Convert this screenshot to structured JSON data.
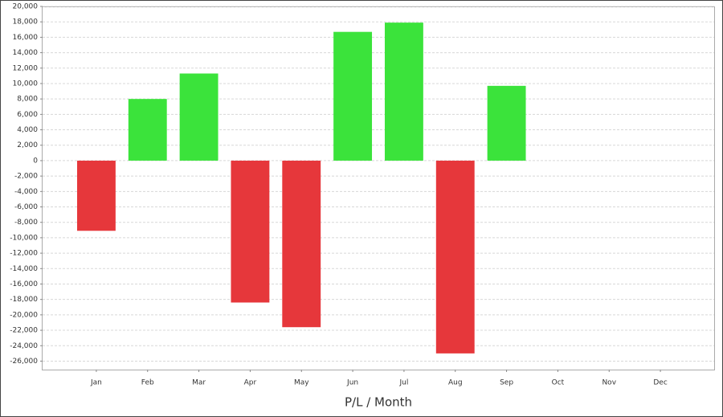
{
  "chart_data": {
    "type": "bar",
    "x_label": "P/L / Month",
    "categories": [
      "Jan",
      "Feb",
      "Mar",
      "Apr",
      "May",
      "Jun",
      "Jul",
      "Aug",
      "Sep",
      "Oct",
      "Nov",
      "Dec"
    ],
    "values": [
      -9100,
      8000,
      11300,
      -18400,
      -21600,
      16700,
      17900,
      -25000,
      9700,
      null,
      null,
      null
    ],
    "positive_color": "#3be33b",
    "negative_color": "#e6373b",
    "ylim": [
      -27100,
      20000
    ],
    "yticks": [
      {
        "value": 20000,
        "label": "20,000"
      },
      {
        "value": 18000,
        "label": "18,000"
      },
      {
        "value": 16000,
        "label": "16,000"
      },
      {
        "value": 14000,
        "label": "14,000"
      },
      {
        "value": 12000,
        "label": "12,000"
      },
      {
        "value": 10000,
        "label": "10,000"
      },
      {
        "value": 8000,
        "label": "8,000"
      },
      {
        "value": 6000,
        "label": "6,000"
      },
      {
        "value": 4000,
        "label": "4,000"
      },
      {
        "value": 2000,
        "label": "2,000"
      },
      0,
      {
        "value": -2000,
        "label": "-2,000"
      },
      {
        "value": -4000,
        "label": "-4,000"
      },
      {
        "value": -6000,
        "label": "-6,000"
      },
      {
        "value": -8000,
        "label": "-8,000"
      },
      {
        "value": -10000,
        "label": "-10,000"
      },
      {
        "value": -12000,
        "label": "-12,000"
      },
      {
        "value": -14000,
        "label": "-14,000"
      },
      {
        "value": -16000,
        "label": "-16,000"
      },
      {
        "value": -18000,
        "label": "-18,000"
      },
      {
        "value": -20000,
        "label": "-20,000"
      },
      {
        "value": -22000,
        "label": "-22,000"
      },
      {
        "value": -24000,
        "label": "-24,000"
      },
      {
        "value": -26000,
        "label": "-26,000"
      }
    ],
    "grid": true
  }
}
